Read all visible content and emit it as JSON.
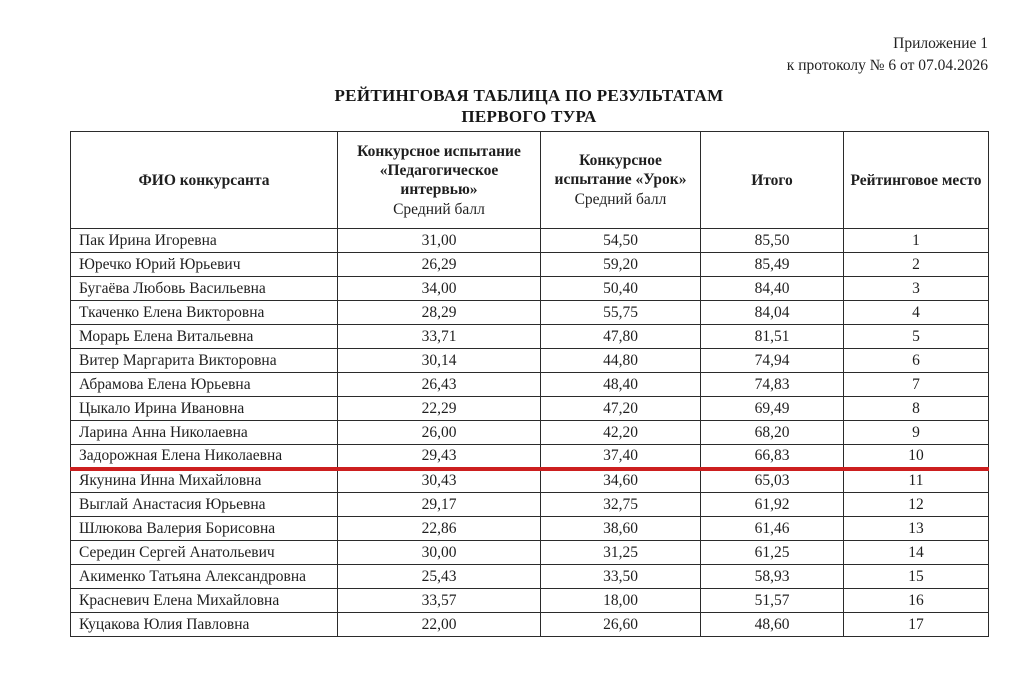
{
  "page": {
    "annex_line1": "Приложение 1",
    "annex_line2": "к протоколу № 6 от 07.04.2026",
    "title_line1": "РЕЙТИНГОВАЯ ТАБЛИЦА ПО РЕЗУЛЬТАТАМ",
    "title_line2": "ПЕРВОГО ТУРА"
  },
  "table": {
    "headers": {
      "name": "ФИО конкурсанта",
      "interview_title": "Конкурсное испытание «Педагогическое интервью»",
      "interview_sub": "Средний балл",
      "lesson_title": "Конкурсное испытание «Урок»",
      "lesson_sub": "Средний балл",
      "total": "Итого",
      "rank": "Рейтинговое место"
    },
    "cutoff_after_rank": "10",
    "cutoff_color": "#cc1f1f",
    "rows": [
      {
        "name": "Пак Ирина Игоревна",
        "interview": "31,00",
        "lesson": "54,50",
        "total": "85,50",
        "rank": "1"
      },
      {
        "name": "Юречко Юрий Юрьевич",
        "interview": "26,29",
        "lesson": "59,20",
        "total": "85,49",
        "rank": "2"
      },
      {
        "name": "Бугаёва Любовь Васильевна",
        "interview": "34,00",
        "lesson": "50,40",
        "total": "84,40",
        "rank": "3"
      },
      {
        "name": "Ткаченко Елена Викторовна",
        "interview": "28,29",
        "lesson": "55,75",
        "total": "84,04",
        "rank": "4"
      },
      {
        "name": "Морарь Елена Витальевна",
        "interview": "33,71",
        "lesson": "47,80",
        "total": "81,51",
        "rank": "5"
      },
      {
        "name": "Витер Маргарита Викторовна",
        "interview": "30,14",
        "lesson": "44,80",
        "total": "74,94",
        "rank": "6"
      },
      {
        "name": "Абрамова Елена Юрьевна",
        "interview": "26,43",
        "lesson": "48,40",
        "total": "74,83",
        "rank": "7"
      },
      {
        "name": "Цыкало Ирина Ивановна",
        "interview": "22,29",
        "lesson": "47,20",
        "total": "69,49",
        "rank": "8"
      },
      {
        "name": "Ларина Анна Николаевна",
        "interview": "26,00",
        "lesson": "42,20",
        "total": "68,20",
        "rank": "9"
      },
      {
        "name": "Задорожная Елена Николаевна",
        "interview": "29,43",
        "lesson": "37,40",
        "total": "66,83",
        "rank": "10"
      },
      {
        "name": "Якунина Инна Михайловна",
        "interview": "30,43",
        "lesson": "34,60",
        "total": "65,03",
        "rank": "11"
      },
      {
        "name": "Выглай Анастасия Юрьевна",
        "interview": "29,17",
        "lesson": "32,75",
        "total": "61,92",
        "rank": "12"
      },
      {
        "name": "Шлюкова Валерия Борисовна",
        "interview": "22,86",
        "lesson": "38,60",
        "total": "61,46",
        "rank": "13"
      },
      {
        "name": "Середин Сергей Анатольевич",
        "interview": "30,00",
        "lesson": "31,25",
        "total": "61,25",
        "rank": "14"
      },
      {
        "name": "Акименко Татьяна Александровна",
        "interview": "25,43",
        "lesson": "33,50",
        "total": "58,93",
        "rank": "15"
      },
      {
        "name": "Красневич Елена Михайловна",
        "interview": "33,57",
        "lesson": "18,00",
        "total": "51,57",
        "rank": "16"
      },
      {
        "name": "Куцакова Юлия Павловна",
        "interview": "22,00",
        "lesson": "26,60",
        "total": "48,60",
        "rank": "17"
      }
    ]
  }
}
